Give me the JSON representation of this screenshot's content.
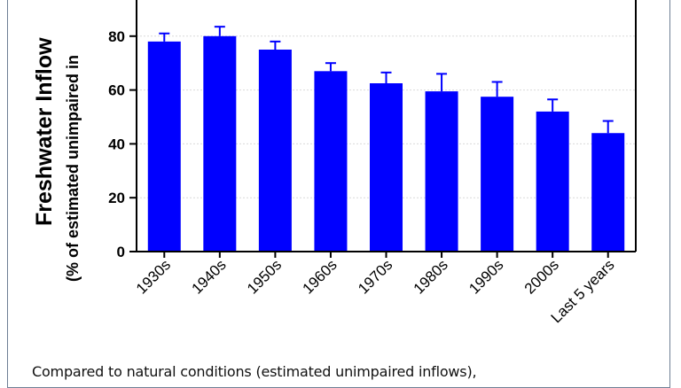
{
  "chart_data": {
    "type": "bar",
    "ylabel_main": "Freshwater Inflow",
    "ylabel_sub": "(% of estimated unimpaired in",
    "categories": [
      "1930s",
      "1940s",
      "1950s",
      "1960s",
      "1970s",
      "1980s",
      "1990s",
      "2000s",
      "Last 5 years"
    ],
    "values": [
      78,
      80,
      75,
      67,
      62.5,
      59.5,
      57.5,
      52,
      44
    ],
    "errors": [
      3,
      3.5,
      3,
      3,
      4,
      6.5,
      5.5,
      4.5,
      4.5
    ],
    "ylim": [
      0,
      100
    ],
    "yticks": [
      0,
      20,
      40,
      60,
      80
    ],
    "bar_color": "#0000ff",
    "grid": true,
    "legend": "none"
  },
  "caption": "Compared to natural conditions (estimated unimpaired inflows),"
}
